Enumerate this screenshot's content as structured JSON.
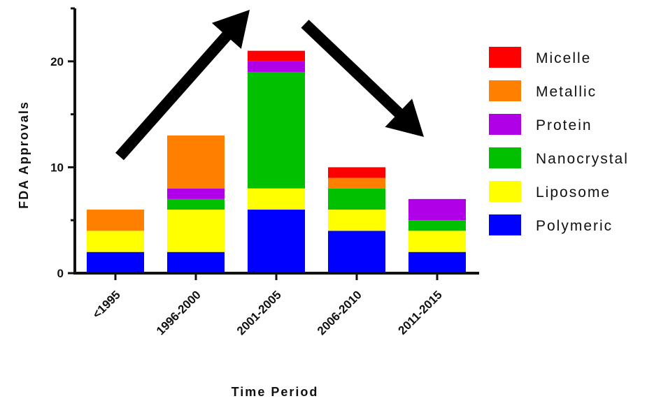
{
  "chart_data": {
    "type": "bar",
    "stacked": true,
    "categories": [
      "<1995",
      "1996-2000",
      "2001-2005",
      "2006-2010",
      "2011-2015"
    ],
    "series": [
      {
        "name": "Polymeric",
        "color": "#0000ff",
        "values": [
          2,
          2,
          6,
          4,
          2
        ]
      },
      {
        "name": "Liposome",
        "color": "#ffff00",
        "values": [
          2,
          4,
          2,
          2,
          2
        ]
      },
      {
        "name": "Nanocrystal",
        "color": "#00c000",
        "values": [
          0,
          1,
          11,
          2,
          1
        ]
      },
      {
        "name": "Protein",
        "color": "#b000e8",
        "values": [
          0,
          1,
          1,
          0,
          2
        ]
      },
      {
        "name": "Metallic",
        "color": "#ff7f00",
        "values": [
          2,
          5,
          0,
          1,
          0
        ]
      },
      {
        "name": "Micelle",
        "color": "#ff0000",
        "values": [
          0,
          0,
          1,
          1,
          0
        ]
      }
    ],
    "legend_order": [
      "Micelle",
      "Metallic",
      "Protein",
      "Nanocrystal",
      "Liposome",
      "Polymeric"
    ],
    "legend_position": "right",
    "xlabel": "Time Period",
    "ylabel": "FDA Approvals",
    "ylim": [
      0,
      25
    ],
    "yticks": [
      0,
      10,
      20
    ],
    "grid": false,
    "annotations": [
      {
        "type": "arrow",
        "direction": "up",
        "from_category": "<1995",
        "to_category": "2001-2005"
      },
      {
        "type": "arrow",
        "direction": "down",
        "from_category": "2001-2005",
        "to_category": "2011-2015"
      }
    ]
  }
}
